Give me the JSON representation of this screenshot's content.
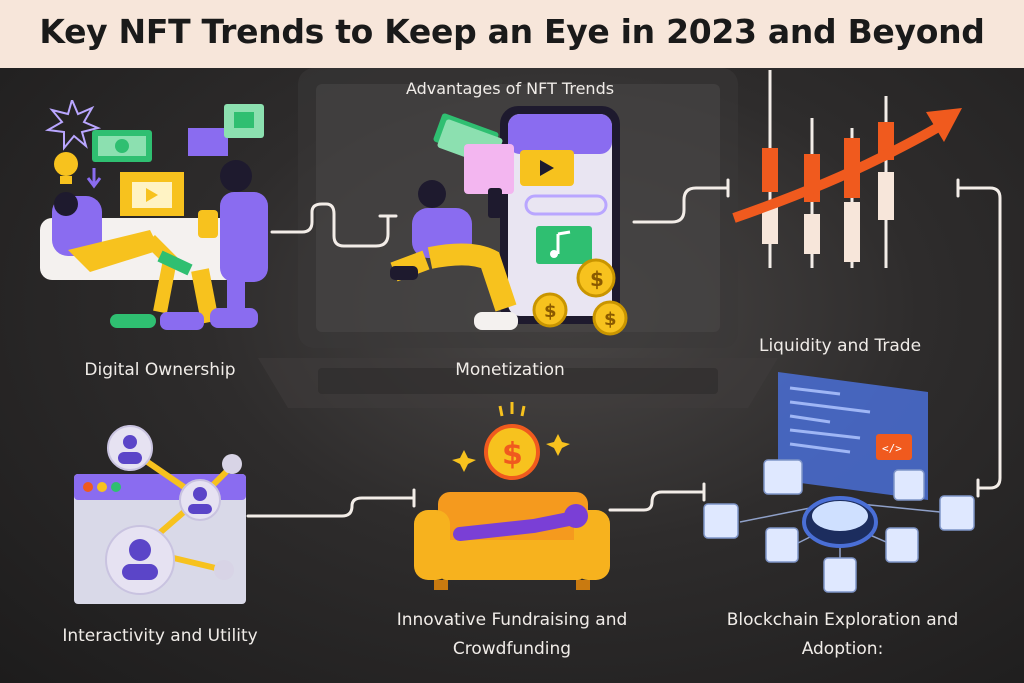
{
  "title": "Key NFT Trends to Keep an Eye in 2023 and Beyond",
  "subtitle": "Advantages of NFT Trends",
  "nodes": {
    "digital_ownership": "Digital Ownership",
    "monetization": "Monetization",
    "liquidity": "Liquidity and Trade",
    "blockchain": "Blockchain Exploration and Adoption:",
    "fundraising": "Innovative Fundraising and Crowdfunding",
    "interactivity": "Interactivity and Utility"
  },
  "colors": {
    "title_bg": "#f7e6da",
    "background": "#2e2c2c",
    "connector": "#f3ede8",
    "accent_yellow": "#f7c21e",
    "accent_purple": "#8a6cf0",
    "accent_orange": "#f05a1e",
    "accent_green": "#2fbf71"
  },
  "icons": [
    "digital-ownership-illustration",
    "monetization-illustration",
    "candlestick-chart-icon",
    "blockchain-network-illustration",
    "sofa-coin-illustration",
    "user-network-window-illustration"
  ]
}
